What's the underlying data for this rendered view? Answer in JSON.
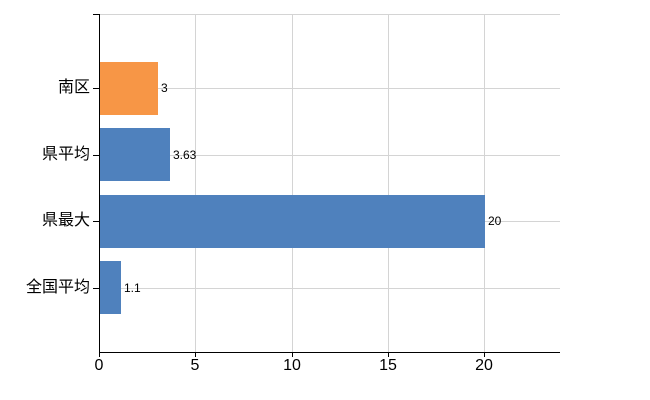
{
  "chart_data": {
    "type": "bar",
    "orientation": "horizontal",
    "title": "",
    "xlabel": "",
    "ylabel": "",
    "categories": [
      "南区",
      "県平均",
      "県最大",
      "全国平均"
    ],
    "values": [
      3,
      3.63,
      20,
      1.1
    ],
    "value_labels": [
      "3",
      "3.63",
      "20",
      "1.1"
    ],
    "bar_colors": [
      "#F79646",
      "#4F81BD",
      "#4F81BD",
      "#4F81BD"
    ],
    "x_ticks": [
      0,
      5,
      10,
      15,
      20
    ],
    "x_tick_labels": [
      "0",
      "5",
      "10",
      "15",
      "20"
    ],
    "xlim": [
      0,
      24
    ],
    "grid": "on",
    "legend": "none",
    "colors": {
      "grid": "#d4d4d4",
      "axis": "#000000",
      "text": "#000000",
      "background": "#ffffff",
      "bar_blue": "#4F81BD",
      "bar_orange": "#F79646"
    }
  }
}
